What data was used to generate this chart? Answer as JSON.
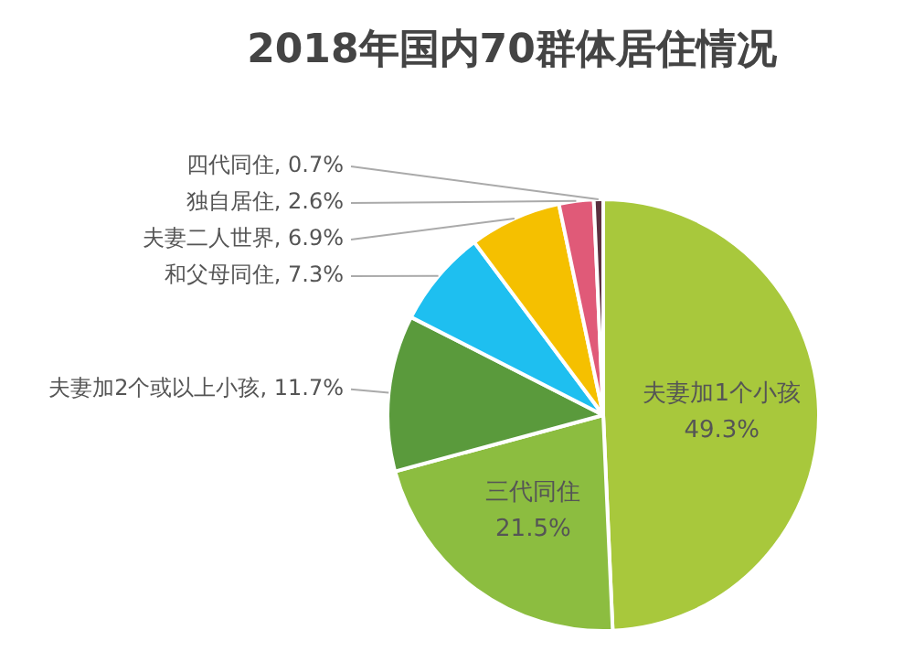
{
  "chart_data": {
    "type": "pie",
    "title": "2018年国内70群体居住情况",
    "categories": [
      "夫妻加1个小孩",
      "三代同住",
      "夫妻加2个或以上小孩",
      "和父母同住",
      "夫妻二人世界",
      "独自居住",
      "四代同住"
    ],
    "values": [
      49.3,
      21.5,
      11.7,
      7.3,
      6.9,
      2.6,
      0.7
    ],
    "colors": [
      "#a8c83c",
      "#8cbd40",
      "#5a9a3c",
      "#1ebff0",
      "#f5c000",
      "#e05a78",
      "#5a3040"
    ],
    "value_labels": [
      "49.3%",
      "21.5%",
      "11.7%",
      "7.3%",
      "6.9%",
      "2.6%",
      "0.7%"
    ],
    "legend": false
  }
}
